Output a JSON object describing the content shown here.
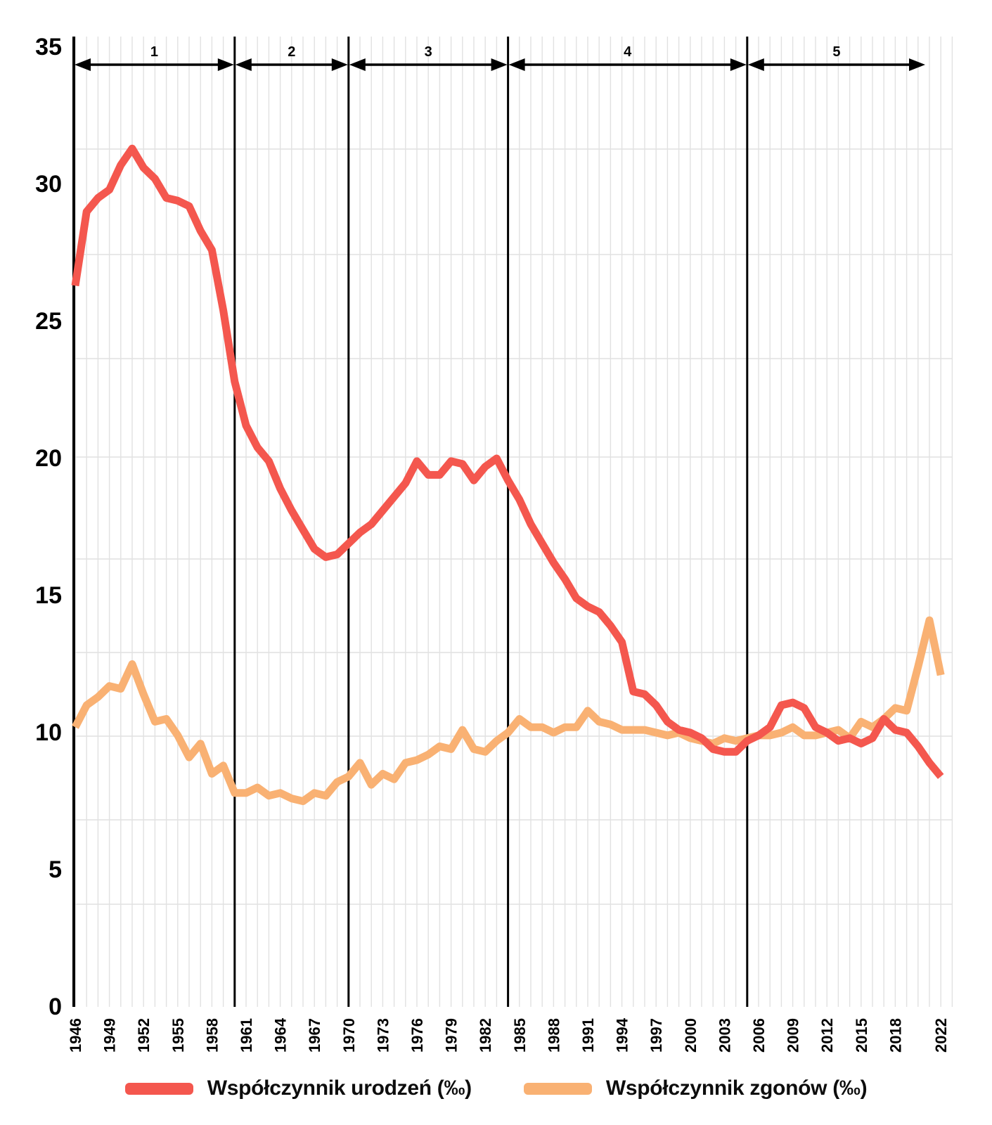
{
  "chart_data": {
    "type": "line",
    "title": "",
    "xlabel": "",
    "ylabel": "",
    "x_start": 1946,
    "x_end": 2022,
    "x_step": 1,
    "ylim": [
      0,
      35
    ],
    "yticks": [
      35,
      30,
      25,
      20,
      15,
      10,
      5,
      0
    ],
    "xticks": [
      1946,
      1949,
      1952,
      1955,
      1958,
      1961,
      1964,
      1967,
      1970,
      1973,
      1976,
      1979,
      1982,
      1985,
      1988,
      1991,
      1994,
      1997,
      2000,
      2003,
      2006,
      2009,
      2012,
      2015,
      2018,
      2022
    ],
    "grid": {
      "vertical": "one light line per year",
      "horizontal": "sparse light lines"
    },
    "legend_position": "bottom",
    "sections": [
      {
        "label": "1",
        "from": 1946,
        "to": 1960
      },
      {
        "label": "2",
        "from": 1960,
        "to": 1970
      },
      {
        "label": "3",
        "from": 1970,
        "to": 1984
      },
      {
        "label": "4",
        "from": 1984,
        "to": 2005
      },
      {
        "label": "5",
        "from": 2005,
        "to": 2022
      }
    ],
    "series": [
      {
        "name": "Współczynnik urodzeń (‰)",
        "color": "#f4574e",
        "values": [
          26.3,
          29.0,
          29.5,
          29.8,
          30.7,
          31.3,
          30.6,
          30.2,
          29.5,
          29.4,
          29.2,
          28.3,
          27.6,
          25.4,
          22.8,
          21.2,
          20.4,
          19.9,
          18.9,
          18.1,
          17.4,
          16.7,
          16.4,
          16.5,
          16.9,
          17.3,
          17.6,
          18.1,
          18.6,
          19.1,
          19.9,
          19.4,
          19.4,
          19.9,
          19.8,
          19.2,
          19.7,
          20.0,
          19.2,
          18.5,
          17.6,
          16.9,
          16.2,
          15.6,
          14.9,
          14.6,
          14.4,
          13.9,
          13.3,
          11.5,
          11.4,
          11.0,
          10.4,
          10.1,
          10.0,
          9.8,
          9.4,
          9.3,
          9.3,
          9.7,
          9.9,
          10.2,
          11.0,
          11.1,
          10.9,
          10.2,
          10.0,
          9.7,
          9.8,
          9.6,
          9.8,
          10.5,
          10.1,
          10.0,
          9.5,
          8.9,
          8.4
        ]
      },
      {
        "name": "Współczynnik zgonów (‰)",
        "color": "#f9b173",
        "values": [
          10.2,
          11.0,
          11.3,
          11.7,
          11.6,
          12.5,
          11.4,
          10.4,
          10.5,
          9.9,
          9.1,
          9.6,
          8.5,
          8.8,
          7.8,
          7.8,
          8.0,
          7.7,
          7.8,
          7.6,
          7.5,
          7.8,
          7.7,
          8.2,
          8.4,
          8.9,
          8.1,
          8.5,
          8.3,
          8.9,
          9.0,
          9.2,
          9.5,
          9.4,
          10.1,
          9.4,
          9.3,
          9.7,
          10.0,
          10.5,
          10.2,
          10.2,
          10.0,
          10.2,
          10.2,
          10.8,
          10.4,
          10.3,
          10.1,
          10.1,
          10.1,
          10.0,
          9.9,
          10.0,
          9.8,
          9.7,
          9.6,
          9.8,
          9.7,
          9.8,
          9.9,
          9.9,
          10.0,
          10.2,
          9.9,
          9.9,
          10.0,
          10.1,
          9.8,
          10.4,
          10.2,
          10.5,
          10.9,
          10.8,
          12.4,
          14.1,
          12.1
        ]
      }
    ]
  },
  "legend": {
    "items": [
      {
        "label": "Współczynnik urodzeń (‰)",
        "color": "#f4574e"
      },
      {
        "label": "Współczynnik zgonów (‰)",
        "color": "#f9b173"
      }
    ]
  },
  "colors": {
    "births_line": "#f4574e",
    "deaths_line": "#f9b173",
    "axis": "#000000",
    "grid": "#e1e1e1",
    "text": "#000000",
    "background": "#ffffff"
  }
}
